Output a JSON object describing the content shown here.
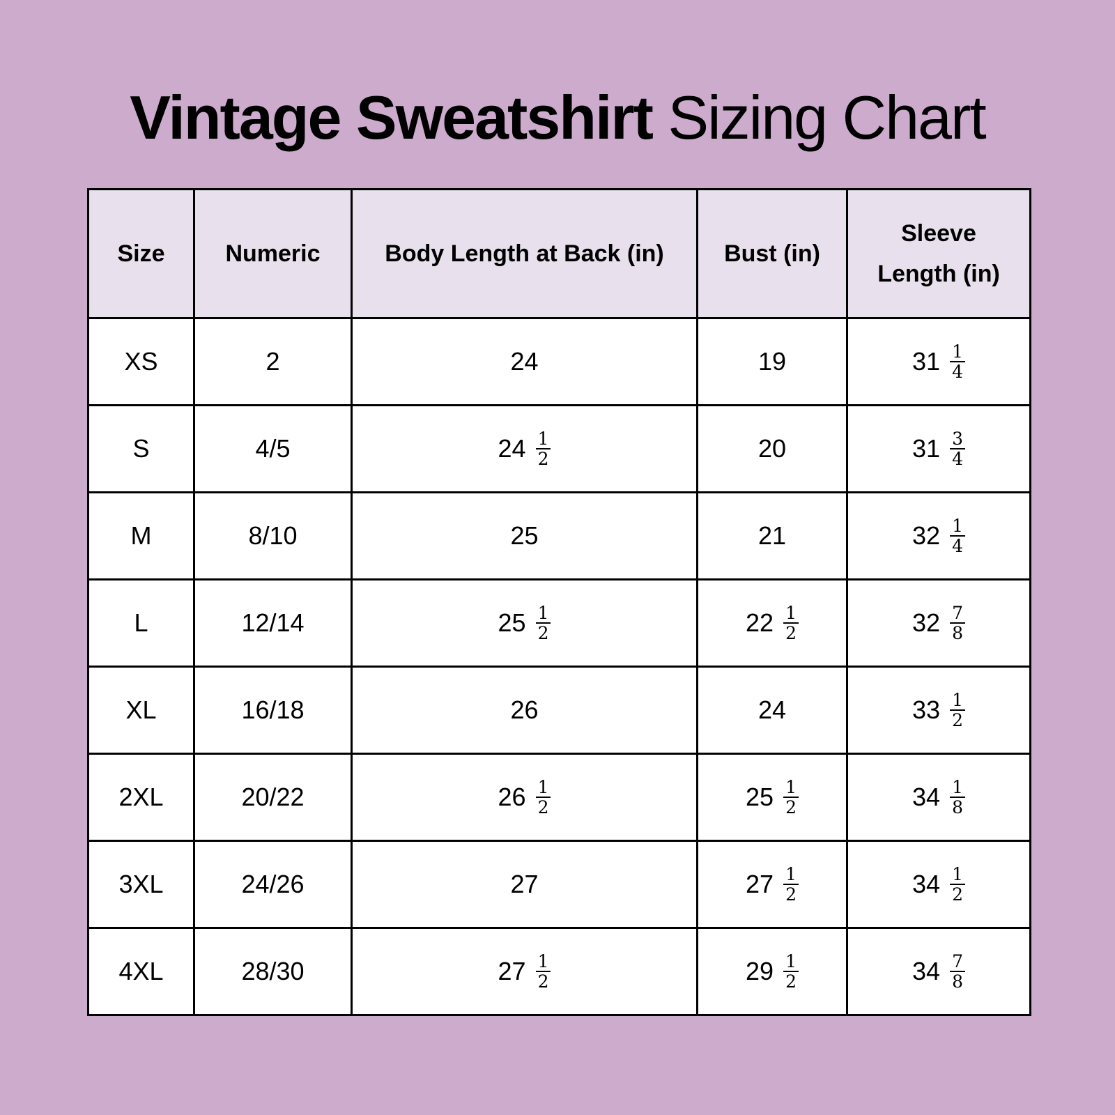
{
  "title": {
    "bold": "Vintage Sweatshirt",
    "regular": "Sizing Chart"
  },
  "colors": {
    "background": "#cdabcd",
    "header_bg": "#e8e0ec",
    "cell_bg": "#ffffff",
    "border": "#000000"
  },
  "table": {
    "headers": [
      "Size",
      "Numeric",
      "Body Length at Back (in)",
      "Bust (in)",
      "Sleeve Length (in)"
    ],
    "rows": [
      [
        {
          "w": "XS"
        },
        {
          "w": "2"
        },
        {
          "w": "24"
        },
        {
          "w": "19"
        },
        {
          "w": "31",
          "n": "1",
          "d": "4"
        }
      ],
      [
        {
          "w": "S"
        },
        {
          "w": "4/5"
        },
        {
          "w": "24",
          "n": "1",
          "d": "2"
        },
        {
          "w": "20"
        },
        {
          "w": "31",
          "n": "3",
          "d": "4"
        }
      ],
      [
        {
          "w": "M"
        },
        {
          "w": "8/10"
        },
        {
          "w": "25"
        },
        {
          "w": "21"
        },
        {
          "w": "32",
          "n": "1",
          "d": "4"
        }
      ],
      [
        {
          "w": "L"
        },
        {
          "w": "12/14"
        },
        {
          "w": "25",
          "n": "1",
          "d": "2"
        },
        {
          "w": "22",
          "n": "1",
          "d": "2"
        },
        {
          "w": "32",
          "n": "7",
          "d": "8"
        }
      ],
      [
        {
          "w": "XL"
        },
        {
          "w": "16/18"
        },
        {
          "w": "26"
        },
        {
          "w": "24"
        },
        {
          "w": "33",
          "n": "1",
          "d": "2"
        }
      ],
      [
        {
          "w": "2XL"
        },
        {
          "w": "20/22"
        },
        {
          "w": "26",
          "n": "1",
          "d": "2"
        },
        {
          "w": "25",
          "n": "1",
          "d": "2"
        },
        {
          "w": "34",
          "n": "1",
          "d": "8"
        }
      ],
      [
        {
          "w": "3XL"
        },
        {
          "w": "24/26"
        },
        {
          "w": "27"
        },
        {
          "w": "27",
          "n": "1",
          "d": "2"
        },
        {
          "w": "34",
          "n": "1",
          "d": "2"
        }
      ],
      [
        {
          "w": "4XL"
        },
        {
          "w": "28/30"
        },
        {
          "w": "27",
          "n": "1",
          "d": "2"
        },
        {
          "w": "29",
          "n": "1",
          "d": "2"
        },
        {
          "w": "34",
          "n": "7",
          "d": "8"
        }
      ]
    ]
  }
}
